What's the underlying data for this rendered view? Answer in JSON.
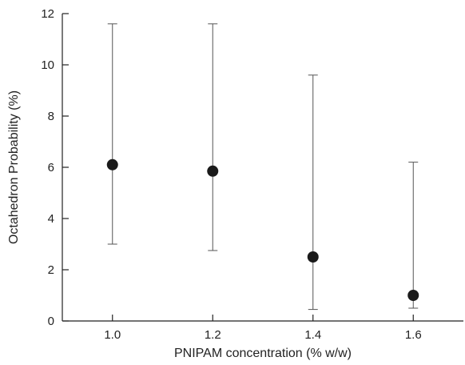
{
  "chart_data": {
    "type": "scatter",
    "xlabel": "PNIPAM concentration (% w/w)",
    "ylabel": "Octahedron Probability (%)",
    "xlim": [
      0.9,
      1.7
    ],
    "ylim": [
      0,
      12
    ],
    "x_ticks": [
      "1.0",
      "1.2",
      "1.4",
      "1.6"
    ],
    "y_ticks": [
      "0",
      "2",
      "4",
      "6",
      "8",
      "10",
      "12"
    ],
    "grid": false,
    "marker_color": "#1a1a1a",
    "errorbar_color": "#555555",
    "series": [
      {
        "x": [
          1.0,
          1.2,
          1.4,
          1.6
        ],
        "y": [
          6.1,
          5.85,
          2.5,
          1.0
        ],
        "y_low": [
          3.0,
          2.75,
          0.45,
          0.5
        ],
        "y_high": [
          11.6,
          11.6,
          9.6,
          6.2
        ]
      }
    ]
  }
}
